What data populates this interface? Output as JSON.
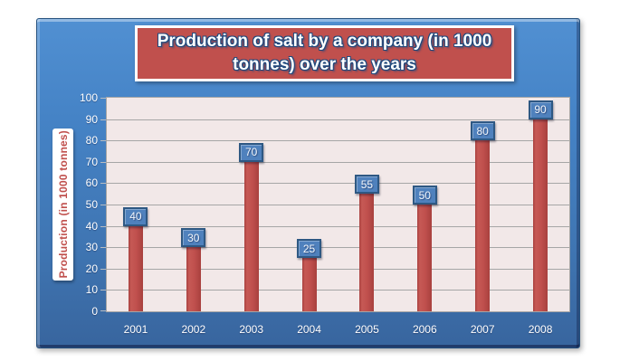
{
  "window": {
    "background_color": "#ffffff",
    "panel_color_top": "#5190d2",
    "panel_color_bottom": "#38659e"
  },
  "title_box": {
    "fill_color": "#c0504d",
    "border_color": "#ffffff"
  },
  "chart_data": {
    "type": "bar",
    "title": "Production of salt by a company (in 1000 tonnes) over the years",
    "title_lines": [
      "Production of salt by a company (in 1000",
      "tonnes) over the years"
    ],
    "xlabel": "",
    "ylabel": "Production (in 1000 tonnes)",
    "categories": [
      "2001",
      "2002",
      "2003",
      "2004",
      "2005",
      "2006",
      "2007",
      "2008"
    ],
    "values": [
      40,
      30,
      70,
      25,
      55,
      50,
      80,
      90
    ],
    "data_labels_shown": true,
    "ylim": [
      0,
      100
    ],
    "yticks": [
      0,
      10,
      20,
      30,
      40,
      50,
      60,
      70,
      80,
      90,
      100
    ],
    "grid": true,
    "legend_position": "none",
    "bar_color": "#c0504d",
    "data_label_box_color": "#4f81bd",
    "data_label_border_color": "#2e5883",
    "data_label_text_color": "#ffffff",
    "plot_background_color": "#f2e8e8",
    "gridline_color": "#a6a6a6",
    "axis_text_color": "#ffffff",
    "ylabel_text_color": "#c0504d"
  }
}
